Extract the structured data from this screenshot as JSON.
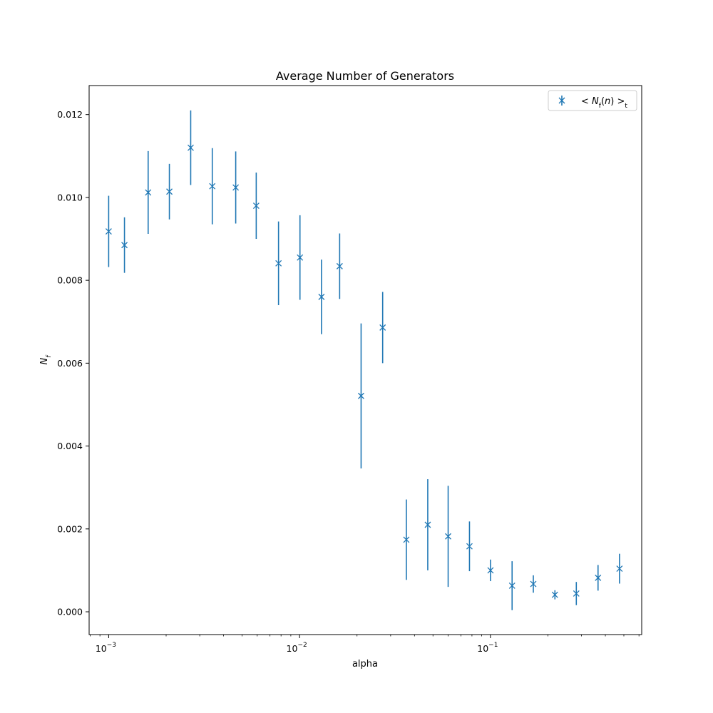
{
  "chart_data": {
    "type": "scatter",
    "title": "Average Number of Generators",
    "xlabel": "alpha",
    "ylabel": "N_f",
    "xscale": "log",
    "xlim": [
      0.00079,
      0.62
    ],
    "ylim": [
      -0.00055,
      0.0127
    ],
    "grid": false,
    "legend_position": "top-right",
    "x_ticks": [
      {
        "value": 0.001,
        "base": "10",
        "exp": "−3"
      },
      {
        "value": 0.01,
        "base": "10",
        "exp": "−2"
      },
      {
        "value": 0.1,
        "base": "10",
        "exp": "−1"
      }
    ],
    "y_ticks": [
      {
        "value": 0.0,
        "label": "0.000"
      },
      {
        "value": 0.002,
        "label": "0.002"
      },
      {
        "value": 0.004,
        "label": "0.004"
      },
      {
        "value": 0.006,
        "label": "0.006"
      },
      {
        "value": 0.008,
        "label": "0.008"
      },
      {
        "value": 0.01,
        "label": "0.010"
      },
      {
        "value": 0.012,
        "label": "0.012"
      }
    ],
    "series": [
      {
        "name": "< N_f(n) >_t",
        "color": "#1f77b4",
        "marker": "x",
        "points": [
          {
            "x": 0.001,
            "y": 0.00918,
            "err": 0.00086
          },
          {
            "x": 0.00121,
            "y": 0.00885,
            "err": 0.00067
          },
          {
            "x": 0.00161,
            "y": 0.01012,
            "err": 0.001
          },
          {
            "x": 0.00208,
            "y": 0.01014,
            "err": 0.00067
          },
          {
            "x": 0.00269,
            "y": 0.0112,
            "err": 0.0009
          },
          {
            "x": 0.00349,
            "y": 0.01027,
            "err": 0.00092
          },
          {
            "x": 0.00463,
            "y": 0.01024,
            "err": 0.00087
          },
          {
            "x": 0.00593,
            "y": 0.0098,
            "err": 0.0008
          },
          {
            "x": 0.00776,
            "y": 0.00841,
            "err": 0.00101
          },
          {
            "x": 0.01005,
            "y": 0.00855,
            "err": 0.00102
          },
          {
            "x": 0.01303,
            "y": 0.0076,
            "err": 0.0009
          },
          {
            "x": 0.01622,
            "y": 0.00834,
            "err": 0.00079
          },
          {
            "x": 0.02101,
            "y": 0.00521,
            "err": 0.00175
          },
          {
            "x": 0.02725,
            "y": 0.00686,
            "err": 0.00086
          },
          {
            "x": 0.03626,
            "y": 0.00174,
            "err": 0.00097
          },
          {
            "x": 0.04695,
            "y": 0.0021,
            "err": 0.0011
          },
          {
            "x": 0.06004,
            "y": 0.00182,
            "err": 0.00122
          },
          {
            "x": 0.07766,
            "y": 0.00158,
            "err": 0.0006
          },
          {
            "x": 0.1001,
            "y": 0.001,
            "err": 0.00026
          },
          {
            "x": 0.12985,
            "y": 0.00063,
            "err": 0.00059
          },
          {
            "x": 0.16774,
            "y": 0.00067,
            "err": 0.00021
          },
          {
            "x": 0.21766,
            "y": 0.00041,
            "err": 0.00011
          },
          {
            "x": 0.28173,
            "y": 0.00044,
            "err": 0.00028
          },
          {
            "x": 0.36614,
            "y": 0.00082,
            "err": 0.00031
          },
          {
            "x": 0.47452,
            "y": 0.00104,
            "err": 0.00036
          }
        ]
      }
    ]
  }
}
